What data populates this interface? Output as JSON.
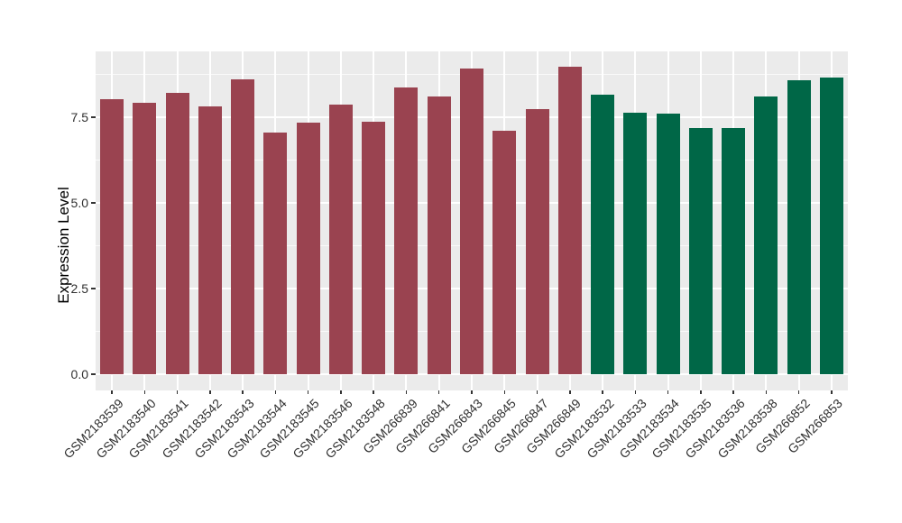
{
  "figure": {
    "background_color": "#FFFFFF",
    "panel_background_color": "#EBEBEB",
    "grid_color": "#FFFFFF",
    "tick_color": "#333333",
    "axis_text_color": "#303030",
    "axis_title_color": "#000000"
  },
  "chart_data": {
    "type": "bar",
    "title": "",
    "xlabel": "",
    "ylabel": "Expression Level",
    "categories": [
      "GSM2183539",
      "GSM2183540",
      "GSM2183541",
      "GSM2183542",
      "GSM2183543",
      "GSM2183544",
      "GSM2183545",
      "GSM2183546",
      "GSM2183548",
      "GSM266839",
      "GSM266841",
      "GSM266843",
      "GSM266845",
      "GSM266847",
      "GSM266849",
      "GSM2183532",
      "GSM2183533",
      "GSM2183534",
      "GSM2183535",
      "GSM2183536",
      "GSM2183538",
      "GSM266852",
      "GSM266853"
    ],
    "values": [
      8.03,
      7.92,
      8.21,
      7.82,
      8.61,
      7.05,
      7.34,
      7.87,
      7.37,
      8.37,
      8.11,
      8.92,
      7.11,
      7.74,
      8.97,
      8.16,
      7.63,
      7.61,
      7.18,
      7.18,
      8.11,
      8.58,
      8.66
    ],
    "groups": [
      "group1",
      "group1",
      "group1",
      "group1",
      "group1",
      "group1",
      "group1",
      "group1",
      "group1",
      "group1",
      "group1",
      "group1",
      "group1",
      "group1",
      "group1",
      "group2",
      "group2",
      "group2",
      "group2",
      "group2",
      "group2",
      "group2",
      "group2"
    ],
    "group_colors": {
      "group1": "#9A4350",
      "group2": "#006747"
    },
    "yticks": [
      0,
      2.5,
      5,
      7.5
    ],
    "ytick_labels": [
      "0.0",
      "2.5",
      "5.0",
      "7.5"
    ],
    "minor_yticks": [
      1.25,
      3.75,
      6.25,
      8.75
    ],
    "ylim": [
      -0.47,
      9.42
    ],
    "bar_width_fraction": 0.72,
    "grid": true,
    "legend_position": "none"
  }
}
